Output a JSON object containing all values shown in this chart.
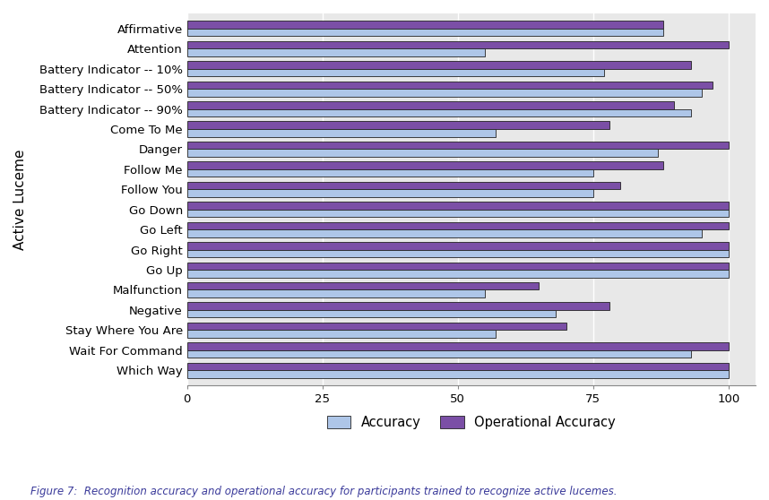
{
  "categories": [
    "Affirmative",
    "Attention",
    "Battery Indicator -- 10%",
    "Battery Indicator -- 50%",
    "Battery Indicator -- 90%",
    "Come To Me",
    "Danger",
    "Follow Me",
    "Follow You",
    "Go Down",
    "Go Left",
    "Go Right",
    "Go Up",
    "Malfunction",
    "Negative",
    "Stay Where You Are",
    "Wait For Command",
    "Which Way"
  ],
  "accuracy": [
    88,
    55,
    77,
    95,
    93,
    57,
    87,
    75,
    75,
    100,
    95,
    100,
    100,
    55,
    68,
    57,
    93,
    100
  ],
  "operational_accuracy": [
    88,
    100,
    93,
    97,
    90,
    78,
    100,
    88,
    80,
    100,
    100,
    100,
    100,
    65,
    78,
    70,
    100,
    100
  ],
  "accuracy_color": "#aec6e8",
  "operational_accuracy_color": "#7b4fa6",
  "background_color": "#ebebeb",
  "plot_bg_color": "#e8e8e8",
  "ylabel": "Active Luceme",
  "xlabel": "",
  "xlim": [
    0,
    105
  ],
  "xticks": [
    0,
    25,
    50,
    75,
    100
  ],
  "legend_accuracy": "Accuracy",
  "legend_operational": "Operational Accuracy",
  "caption": "Figure 7:  Recognition accuracy and operational accuracy for participants trained to recognize active lucemes.",
  "bar_height": 0.38,
  "bar_edge_color": "#222222"
}
